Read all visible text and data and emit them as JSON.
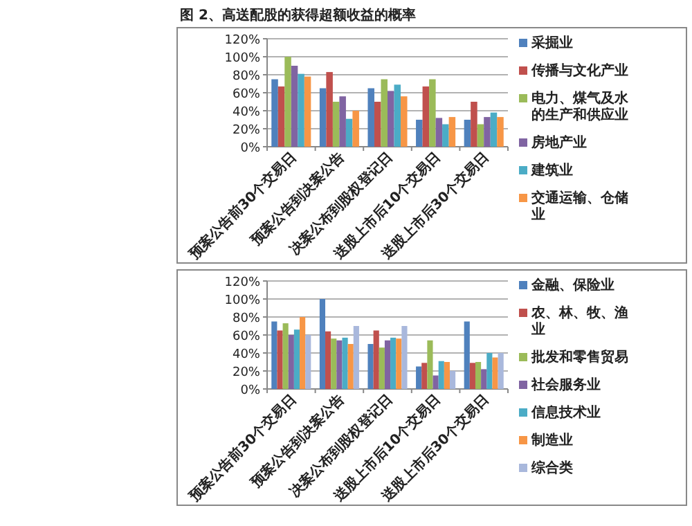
{
  "chart_data": [
    {
      "type": "bar",
      "title": "图 2、高送配股的获得超额收益的概率",
      "categories": [
        "预案公告前30个交易日",
        "预案公告到决案公告",
        "决案公布到股权登记日",
        "送股上市后10个交易日",
        "送股上市后30个交易日"
      ],
      "ylim": [
        0,
        120
      ],
      "yticks": [
        {
          "value": 0,
          "label": "0%"
        },
        {
          "value": 20,
          "label": "20%"
        },
        {
          "value": 40,
          "label": "40%"
        },
        {
          "value": 60,
          "label": "60%"
        },
        {
          "value": 80,
          "label": "80%"
        },
        {
          "value": 100,
          "label": "100%"
        },
        {
          "value": 120,
          "label": "120%"
        }
      ],
      "grid": "y",
      "legend": "right",
      "series": [
        {
          "name": "采掘业",
          "color": "#4f81bd",
          "values": [
            75,
            65,
            65,
            30,
            30
          ]
        },
        {
          "name": "传播与文化产业",
          "color": "#c0504d",
          "values": [
            67,
            83,
            50,
            67,
            50
          ]
        },
        {
          "name": "电力、煤气及水的生产和供应业",
          "color": "#9bbb59",
          "values": [
            100,
            50,
            75,
            75,
            25
          ]
        },
        {
          "name": "房地产业",
          "color": "#8064a2",
          "values": [
            90,
            56,
            62,
            32,
            33
          ]
        },
        {
          "name": "建筑业",
          "color": "#4bacc6",
          "values": [
            81,
            31,
            69,
            25,
            38
          ]
        },
        {
          "name": "交通运输、仓储业",
          "color": "#f79646",
          "values": [
            78,
            40,
            56,
            33,
            33
          ]
        }
      ]
    },
    {
      "type": "bar",
      "categories": [
        "预案公告前30个交易日",
        "预案公告到决案公告",
        "决案公布到股权登记日",
        "送股上市后10个交易日",
        "送股上市后30个交易日"
      ],
      "ylim": [
        0,
        120
      ],
      "yticks": [
        {
          "value": 0,
          "label": "0%"
        },
        {
          "value": 20,
          "label": "20%"
        },
        {
          "value": 40,
          "label": "40%"
        },
        {
          "value": 60,
          "label": "60%"
        },
        {
          "value": 80,
          "label": "80%"
        },
        {
          "value": 100,
          "label": "100%"
        },
        {
          "value": 120,
          "label": "120%"
        }
      ],
      "grid": "y",
      "legend": "right",
      "series": [
        {
          "name": "金融、保险业",
          "color": "#4f81bd",
          "values": [
            75,
            100,
            50,
            25,
            75
          ]
        },
        {
          "name": "农、林、牧、渔业",
          "color": "#c0504d",
          "values": [
            65,
            64,
            65,
            29,
            29
          ]
        },
        {
          "name": "批发和零售贸易",
          "color": "#9bbb59",
          "values": [
            73,
            56,
            46,
            54,
            30
          ]
        },
        {
          "name": "社会服务业",
          "color": "#8064a2",
          "values": [
            60,
            54,
            54,
            15,
            22
          ]
        },
        {
          "name": "信息技术业",
          "color": "#4bacc6",
          "values": [
            66,
            57,
            57,
            31,
            40
          ]
        },
        {
          "name": "制造业",
          "color": "#f79646",
          "values": [
            80,
            50,
            56,
            30,
            35
          ]
        },
        {
          "name": "综合类",
          "color": "#a9b8dc",
          "values": [
            60,
            70,
            70,
            20,
            40
          ]
        }
      ]
    }
  ]
}
